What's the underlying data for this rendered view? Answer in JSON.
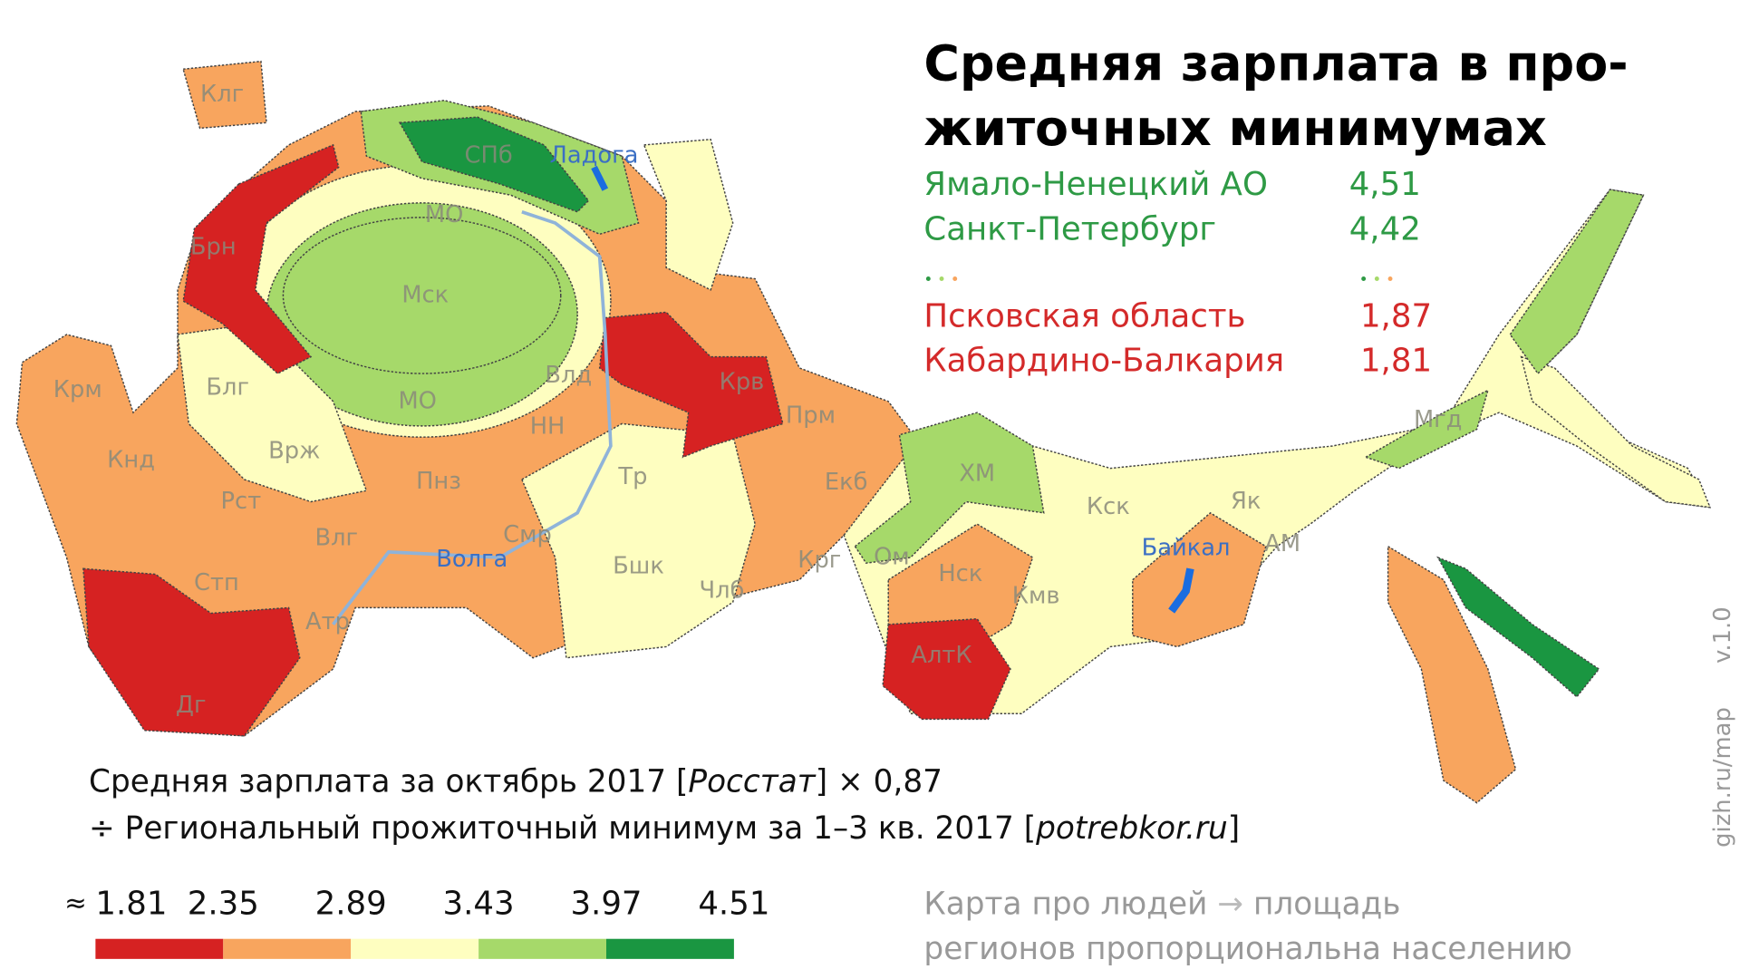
{
  "header": {
    "title_lines": [
      "Средняя зарплата в про-",
      "житочных минимумах"
    ]
  },
  "top_list": [
    {
      "name": "Ямало-Ненецкий АО",
      "value": "4,51",
      "color": "#2e9a45"
    },
    {
      "name": "Санкт-Петербург",
      "value": "4,42",
      "color": "#2e9a45"
    },
    {
      "name": "Псковская область",
      "value": "1,87",
      "color": "#d42a2a"
    },
    {
      "name": "Кабардино-Балкария",
      "value": "1,81",
      "color": "#d42a2a"
    }
  ],
  "footnote": {
    "line1": [
      "Средняя зарплата за октябрь 2017 [",
      "Росстат",
      "] × 0,87"
    ],
    "line2": [
      "÷ Региональный прожиточный минимум за 1–3 кв. 2017 [",
      "potrebkor.ru",
      "]"
    ]
  },
  "legend": {
    "prefix": "≈",
    "ticks": [
      "1.81",
      "2.35",
      "2.89",
      "3.43",
      "3.97",
      "4.51"
    ],
    "colors": [
      "#d62222",
      "#f8a55e",
      "#fefec0",
      "#a6d96a",
      "#1a9641"
    ]
  },
  "side_note": [
    "Карта про людей",
    "площадь",
    "регионов пропорциональна населению"
  ],
  "credit": [
    "gizh.ru/map",
    "v.1.0"
  ],
  "map": {
    "labels": [
      "Клг",
      "СПб",
      "Ладога",
      "МО",
      "Брн",
      "Мск",
      "Крм",
      "Блг",
      "Влд",
      "Крв",
      "НН",
      "Прм",
      "Врж",
      "Кнд",
      "Пнз",
      "Рст",
      "Влг",
      "Смр",
      "Тр",
      "Екб",
      "ХМ",
      "Кск",
      "Як",
      "Мгд",
      "Бшк",
      "Крг",
      "Ом",
      "Нск",
      "Кмв",
      "Байкал",
      "АМ",
      "Стп",
      "Атр",
      "Члб",
      "АлтК",
      "Дг",
      "МО"
    ],
    "water": [
      "Волга"
    ]
  }
}
